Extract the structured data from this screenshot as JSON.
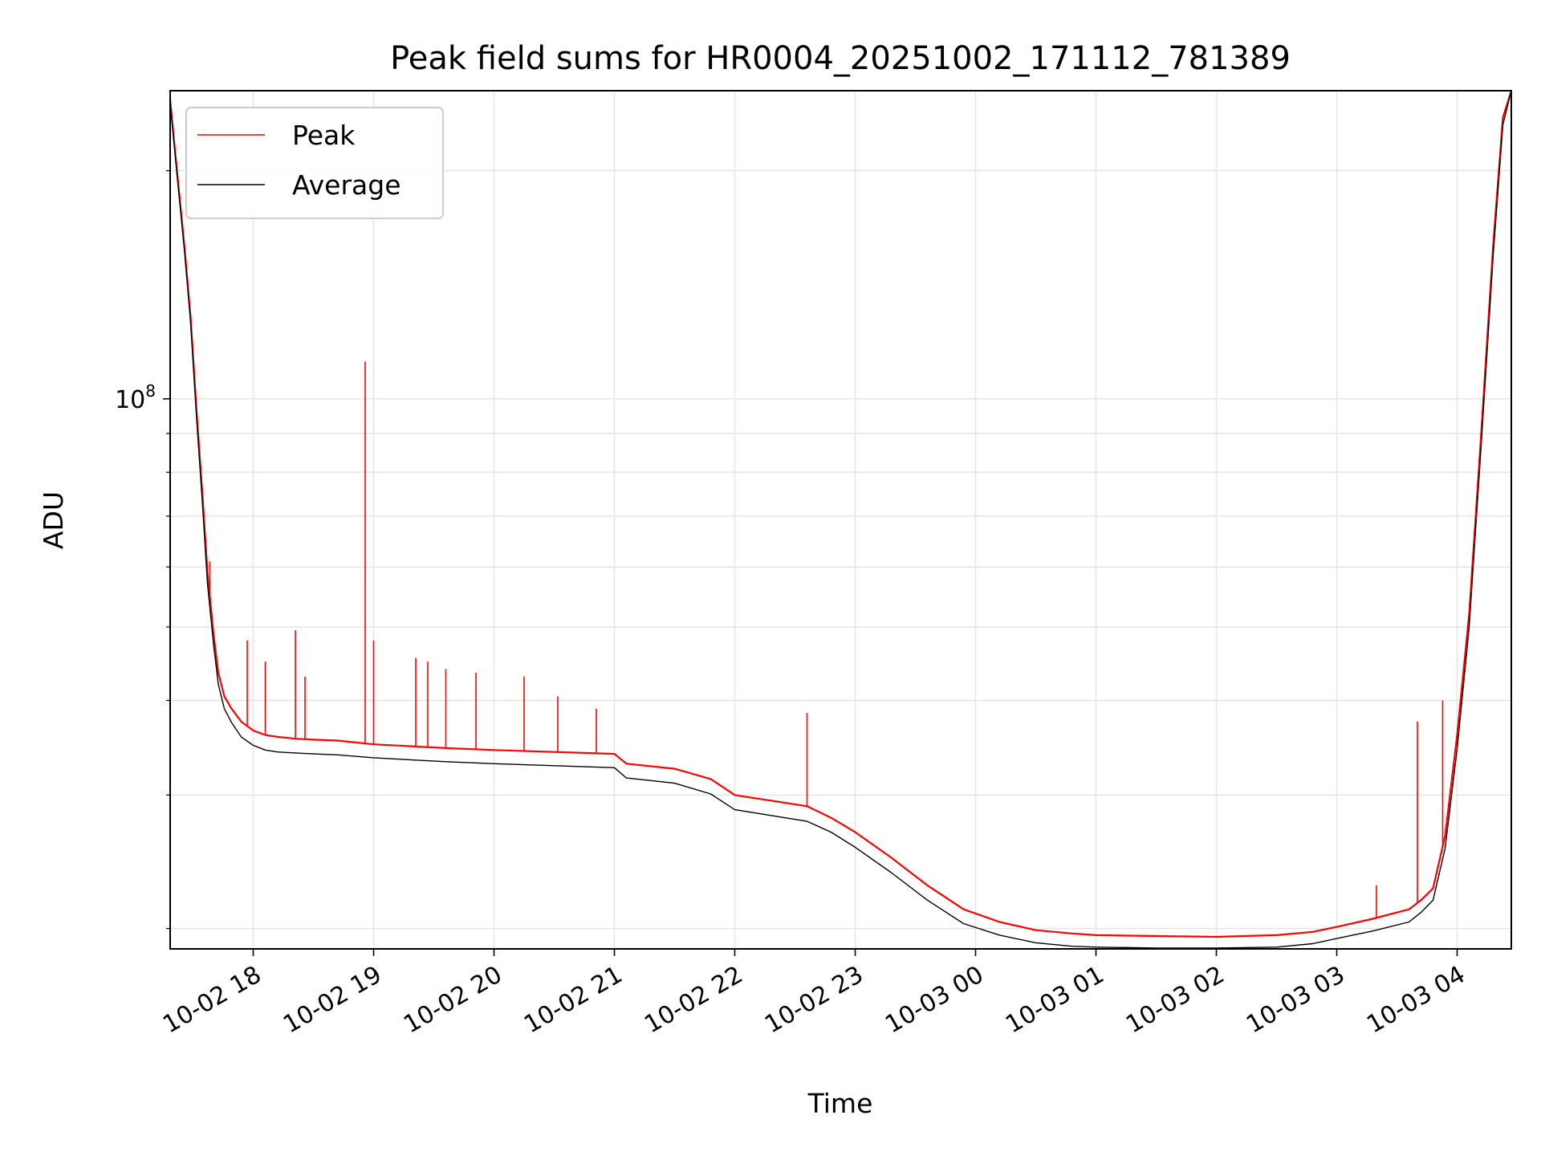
{
  "chart_data": {
    "type": "line",
    "title": "Peak field sums for HR0004_20251002_171112_781389",
    "xlabel": "Time",
    "ylabel": "ADU",
    "yscale": "log",
    "grid": true,
    "legend_position": "top-left",
    "x_unit": "hours since 10-02 00:00",
    "xlim": [
      17.31,
      28.45
    ],
    "ylim": [
      18800000,
      255000000
    ],
    "x_ticks": [
      {
        "value": 18,
        "label": "10-02 18"
      },
      {
        "value": 19,
        "label": "10-02 19"
      },
      {
        "value": 20,
        "label": "10-02 20"
      },
      {
        "value": 21,
        "label": "10-02 21"
      },
      {
        "value": 22,
        "label": "10-02 22"
      },
      {
        "value": 23,
        "label": "10-02 23"
      },
      {
        "value": 24,
        "label": "10-03 00"
      },
      {
        "value": 25,
        "label": "10-03 01"
      },
      {
        "value": 26,
        "label": "10-03 02"
      },
      {
        "value": 27,
        "label": "10-03 03"
      },
      {
        "value": 28,
        "label": "10-03 04"
      }
    ],
    "y_major_tick": {
      "value": 100000000,
      "label_base": "10",
      "label_exp": "8"
    },
    "y_minor_ticks": [
      20000000,
      30000000,
      40000000,
      50000000,
      60000000,
      70000000,
      80000000,
      90000000,
      200000000
    ],
    "series": [
      {
        "name": "Peak",
        "color": "#ff0000",
        "x": [
          17.31,
          17.36,
          17.43,
          17.48,
          17.53,
          17.58,
          17.62,
          17.67,
          17.71,
          17.76,
          17.82,
          17.9,
          18.0,
          18.1,
          18.2,
          18.35,
          18.5,
          18.7,
          19.0,
          19.3,
          19.6,
          20.0,
          20.5,
          21.0,
          21.1,
          21.5,
          21.8,
          22.0,
          22.3,
          22.6,
          22.8,
          23.0,
          23.3,
          23.6,
          23.9,
          24.2,
          24.5,
          24.8,
          25.0,
          25.5,
          26.0,
          26.5,
          26.8,
          27.0,
          27.3,
          27.6,
          27.7,
          27.8,
          27.9,
          28.0,
          28.1,
          28.2,
          28.3,
          28.38,
          28.45
        ],
        "y": [
          248000000,
          205000000,
          158000000,
          128000000,
          96000000,
          74000000,
          59000000,
          49000000,
          43500000,
          40500000,
          39000000,
          37500000,
          36500000,
          36000000,
          35800000,
          35600000,
          35500000,
          35400000,
          35000000,
          34800000,
          34600000,
          34400000,
          34200000,
          34000000,
          33000000,
          32500000,
          31500000,
          30000000,
          29500000,
          29000000,
          28000000,
          26800000,
          24800000,
          22800000,
          21200000,
          20400000,
          19900000,
          19700000,
          19600000,
          19550000,
          19500000,
          19600000,
          19800000,
          20100000,
          20600000,
          21200000,
          21800000,
          22600000,
          26500000,
          36000000,
          52000000,
          90000000,
          160000000,
          235000000,
          255000000
        ]
      },
      {
        "name": "Average",
        "color": "#000000",
        "x": [
          17.31,
          17.36,
          17.43,
          17.48,
          17.53,
          17.58,
          17.62,
          17.67,
          17.71,
          17.76,
          17.82,
          17.9,
          18.0,
          18.1,
          18.2,
          18.35,
          18.5,
          18.7,
          19.0,
          19.3,
          19.6,
          20.0,
          20.5,
          21.0,
          21.1,
          21.5,
          21.8,
          22.0,
          22.3,
          22.6,
          22.8,
          23.0,
          23.3,
          23.6,
          23.9,
          24.2,
          24.5,
          24.8,
          25.0,
          25.5,
          26.0,
          26.5,
          26.8,
          27.0,
          27.3,
          27.6,
          27.7,
          27.8,
          27.9,
          28.0,
          28.1,
          28.2,
          28.3,
          28.38,
          28.45
        ],
        "y": [
          246000000,
          203000000,
          156000000,
          126000000,
          94000000,
          72000000,
          57000000,
          47500000,
          42000000,
          39000000,
          37400000,
          35800000,
          34900000,
          34400000,
          34200000,
          34100000,
          34000000,
          33900000,
          33600000,
          33400000,
          33200000,
          33000000,
          32800000,
          32600000,
          31600000,
          31100000,
          30100000,
          28700000,
          28200000,
          27700000,
          26800000,
          25600000,
          23700000,
          21800000,
          20300000,
          19600000,
          19150000,
          18950000,
          18900000,
          18850000,
          18850000,
          18900000,
          19100000,
          19400000,
          19850000,
          20400000,
          21000000,
          21800000,
          25500000,
          34500000,
          50000000,
          87000000,
          155000000,
          230000000,
          255000000
        ]
      }
    ],
    "spikes": [
      {
        "series": "Peak",
        "x": 17.64,
        "y": 61000000
      },
      {
        "series": "Peak",
        "x": 17.95,
        "y": 48000000
      },
      {
        "series": "Peak",
        "x": 18.1,
        "y": 45000000
      },
      {
        "series": "Peak",
        "x": 18.35,
        "y": 49500000
      },
      {
        "series": "Peak",
        "x": 18.43,
        "y": 43000000
      },
      {
        "series": "Peak",
        "x": 18.93,
        "y": 112000000
      },
      {
        "series": "Peak",
        "x": 19.0,
        "y": 48000000
      },
      {
        "series": "Peak",
        "x": 19.35,
        "y": 45500000
      },
      {
        "series": "Peak",
        "x": 19.45,
        "y": 45000000
      },
      {
        "series": "Peak",
        "x": 19.6,
        "y": 44000000
      },
      {
        "series": "Peak",
        "x": 19.85,
        "y": 43500000
      },
      {
        "series": "Peak",
        "x": 20.25,
        "y": 43000000
      },
      {
        "series": "Peak",
        "x": 20.53,
        "y": 40500000
      },
      {
        "series": "Peak",
        "x": 20.85,
        "y": 39000000
      },
      {
        "series": "Peak",
        "x": 22.6,
        "y": 38500000
      },
      {
        "series": "Peak",
        "x": 27.33,
        "y": 22800000
      },
      {
        "series": "Peak",
        "x": 27.67,
        "y": 37500000
      },
      {
        "series": "Peak",
        "x": 27.88,
        "y": 40000000
      }
    ]
  }
}
